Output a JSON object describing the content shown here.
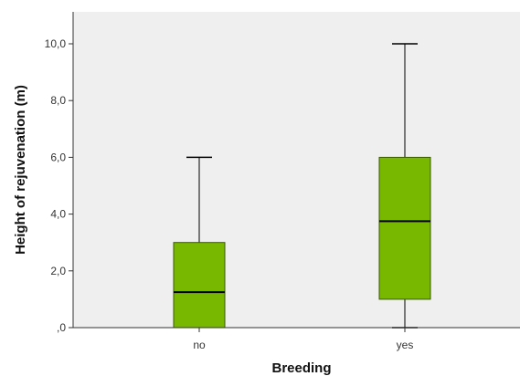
{
  "chart_data": {
    "type": "boxplot",
    "xlabel": "Breeding",
    "ylabel": "Height of rejuvenation (m)",
    "ylim": [
      0,
      11
    ],
    "y_ticks": [
      0,
      2,
      4,
      6,
      8,
      10
    ],
    "y_tick_labels": [
      ",0",
      "2,0",
      "4,0",
      "6,0",
      "8,0",
      "10,0"
    ],
    "categories": [
      "no",
      "yes"
    ],
    "boxes": [
      {
        "category": "no",
        "min": 0,
        "q1": 0,
        "median": 1.25,
        "q3": 3,
        "max": 6
      },
      {
        "category": "yes",
        "min": 0,
        "q1": 1,
        "median": 3.75,
        "q3": 6,
        "max": 10
      }
    ],
    "grid": false,
    "plot_background": "#efefef",
    "box_fill": "#78b800",
    "box_stroke": "#3a5a00",
    "line_color": "#000000"
  }
}
